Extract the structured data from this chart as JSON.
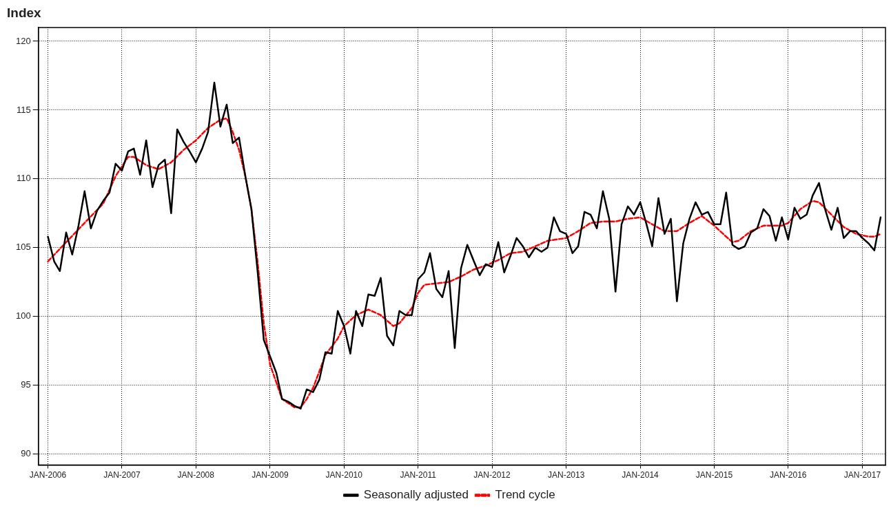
{
  "chart_data": {
    "type": "line",
    "ylabel": "Index",
    "marker": "none",
    "grid": true,
    "legend": "bottom",
    "xlim": [
      "2005-11-15",
      "2017-04-25"
    ],
    "ylim": [
      89.2,
      121
    ],
    "yticks": [
      90,
      95,
      100,
      105,
      110,
      115,
      120
    ],
    "xticks": [
      {
        "value": "2006-01",
        "label": "JAN-2006"
      },
      {
        "value": "2007-01",
        "label": "JAN-2007"
      },
      {
        "value": "2008-01",
        "label": "JAN-2008"
      },
      {
        "value": "2009-01",
        "label": "JAN-2009"
      },
      {
        "value": "2010-01",
        "label": "JAN-2010"
      },
      {
        "value": "2011-01",
        "label": "JAN-2011"
      },
      {
        "value": "2012-01",
        "label": "JAN-2012"
      },
      {
        "value": "2013-01",
        "label": "JAN-2013"
      },
      {
        "value": "2014-01",
        "label": "JAN-2014"
      },
      {
        "value": "2015-01",
        "label": "JAN-2015"
      },
      {
        "value": "2016-01",
        "label": "JAN-2016"
      },
      {
        "value": "2017-01",
        "label": "JAN-2017"
      }
    ],
    "x": [
      "2006-01",
      "2006-02",
      "2006-03",
      "2006-04",
      "2006-05",
      "2006-06",
      "2006-07",
      "2006-08",
      "2006-09",
      "2006-10",
      "2006-11",
      "2006-12",
      "2007-01",
      "2007-02",
      "2007-03",
      "2007-04",
      "2007-05",
      "2007-06",
      "2007-07",
      "2007-08",
      "2007-09",
      "2007-10",
      "2007-11",
      "2007-12",
      "2008-01",
      "2008-02",
      "2008-03",
      "2008-04",
      "2008-05",
      "2008-06",
      "2008-07",
      "2008-08",
      "2008-09",
      "2008-10",
      "2008-11",
      "2008-12",
      "2009-01",
      "2009-02",
      "2009-03",
      "2009-04",
      "2009-05",
      "2009-06",
      "2009-07",
      "2009-08",
      "2009-09",
      "2009-10",
      "2009-11",
      "2009-12",
      "2010-01",
      "2010-02",
      "2010-03",
      "2010-04",
      "2010-05",
      "2010-06",
      "2010-07",
      "2010-08",
      "2010-09",
      "2010-10",
      "2010-11",
      "2010-12",
      "2011-01",
      "2011-02",
      "2011-03",
      "2011-04",
      "2011-05",
      "2011-06",
      "2011-07",
      "2011-08",
      "2011-09",
      "2011-10",
      "2011-11",
      "2011-12",
      "2012-01",
      "2012-02",
      "2012-03",
      "2012-04",
      "2012-05",
      "2012-06",
      "2012-07",
      "2012-08",
      "2012-09",
      "2012-10",
      "2012-11",
      "2012-12",
      "2013-01",
      "2013-02",
      "2013-03",
      "2013-04",
      "2013-05",
      "2013-06",
      "2013-07",
      "2013-08",
      "2013-09",
      "2013-10",
      "2013-11",
      "2013-12",
      "2014-01",
      "2014-02",
      "2014-03",
      "2014-04",
      "2014-05",
      "2014-06",
      "2014-07",
      "2014-08",
      "2014-09",
      "2014-10",
      "2014-11",
      "2014-12",
      "2015-01",
      "2015-02",
      "2015-03",
      "2015-04",
      "2015-05",
      "2015-06",
      "2015-07",
      "2015-08",
      "2015-09",
      "2015-10",
      "2015-11",
      "2015-12",
      "2016-01",
      "2016-02",
      "2016-03",
      "2016-04",
      "2016-05",
      "2016-06",
      "2016-07",
      "2016-08",
      "2016-09",
      "2016-10",
      "2016-11",
      "2016-12",
      "2017-01",
      "2017-02",
      "2017-03",
      "2017-04"
    ],
    "series": [
      {
        "name": "Seasonally adjusted",
        "color": "#000000",
        "line_style": "solid",
        "values": [
          105.8,
          104.0,
          103.3,
          106.1,
          104.5,
          106.6,
          109.1,
          106.4,
          107.7,
          108.4,
          109.0,
          111.1,
          110.6,
          112.0,
          112.2,
          110.3,
          112.8,
          109.4,
          111.0,
          111.4,
          107.5,
          113.6,
          112.7,
          112.0,
          111.2,
          112.2,
          113.4,
          117.0,
          113.8,
          115.4,
          112.6,
          113.0,
          110.2,
          107.8,
          103.2,
          98.3,
          97.1,
          95.9,
          94.0,
          93.8,
          93.5,
          93.3,
          94.7,
          94.5,
          95.4,
          97.4,
          97.3,
          100.4,
          99.3,
          97.3,
          100.4,
          99.3,
          101.6,
          101.5,
          102.8,
          98.6,
          97.9,
          100.4,
          100.1,
          100.1,
          102.7,
          103.2,
          104.6,
          102.0,
          101.4,
          103.3,
          97.7,
          103.5,
          105.2,
          104.1,
          103.0,
          103.8,
          103.6,
          105.4,
          103.2,
          104.4,
          105.7,
          105.1,
          104.3,
          105.0,
          104.7,
          105.0,
          107.2,
          106.2,
          106.0,
          104.6,
          105.1,
          107.6,
          107.4,
          106.4,
          109.1,
          107.1,
          101.8,
          106.7,
          108.0,
          107.4,
          108.3,
          106.7,
          105.1,
          108.6,
          106.0,
          107.1,
          101.1,
          105.3,
          107.1,
          108.3,
          107.4,
          107.6,
          106.7,
          106.7,
          109.0,
          105.2,
          104.9,
          105.1,
          106.1,
          106.4,
          107.8,
          107.3,
          105.5,
          107.2,
          105.6,
          107.9,
          107.1,
          107.4,
          108.8,
          109.7,
          107.8,
          106.3,
          107.9,
          105.7,
          106.2,
          106.2,
          105.7,
          105.3,
          104.8,
          107.2
        ]
      },
      {
        "name": "Trend cycle",
        "color": "#ff0000",
        "line_style": "dashed",
        "x": [
          "2006-01",
          "2006-07",
          "2006-10",
          "2006-12",
          "2007-02",
          "2007-03",
          "2007-05",
          "2007-07",
          "2007-09",
          "2007-11",
          "2008-01",
          "2008-03",
          "2008-05",
          "2008-06",
          "2008-07",
          "2008-08",
          "2008-09",
          "2008-10",
          "2008-11",
          "2008-12",
          "2009-01",
          "2009-02",
          "2009-03",
          "2009-04",
          "2009-05",
          "2009-06",
          "2009-07",
          "2009-08",
          "2009-09",
          "2009-10",
          "2009-12",
          "2010-01",
          "2010-03",
          "2010-05",
          "2010-07",
          "2010-09",
          "2010-10",
          "2010-12",
          "2011-01",
          "2011-02",
          "2011-04",
          "2011-06",
          "2011-08",
          "2011-10",
          "2011-12",
          "2012-02",
          "2012-04",
          "2012-06",
          "2012-08",
          "2012-10",
          "2013-01",
          "2013-03",
          "2013-05",
          "2013-07",
          "2013-09",
          "2013-11",
          "2014-01",
          "2014-03",
          "2014-05",
          "2014-07",
          "2014-09",
          "2014-11",
          "2015-01",
          "2015-03",
          "2015-04",
          "2015-05",
          "2015-07",
          "2015-09",
          "2015-12",
          "2016-01",
          "2016-03",
          "2016-05",
          "2016-06",
          "2016-08",
          "2016-10",
          "2016-12",
          "2017-02",
          "2017-03",
          "2017-04"
        ],
        "values": [
          104.0,
          106.8,
          108.2,
          110.2,
          111.6,
          111.6,
          111.0,
          110.7,
          111.2,
          112.1,
          112.8,
          113.7,
          114.3,
          114.4,
          113.4,
          112.1,
          110.2,
          107.8,
          103.9,
          99.5,
          96.5,
          95.2,
          94.0,
          93.7,
          93.4,
          93.4,
          94.0,
          94.8,
          96.0,
          97.2,
          98.4,
          99.3,
          100.1,
          100.5,
          100.1,
          99.3,
          99.5,
          100.6,
          101.7,
          102.3,
          102.4,
          102.5,
          102.9,
          103.4,
          103.7,
          104.1,
          104.6,
          104.7,
          105.1,
          105.5,
          105.7,
          106.2,
          106.8,
          106.9,
          106.9,
          107.1,
          107.2,
          106.7,
          106.2,
          106.2,
          106.8,
          107.3,
          106.6,
          105.8,
          105.4,
          105.5,
          106.2,
          106.6,
          106.6,
          106.8,
          107.8,
          108.4,
          108.3,
          107.4,
          106.5,
          106.0,
          105.8,
          105.8,
          106.0
        ]
      }
    ]
  }
}
